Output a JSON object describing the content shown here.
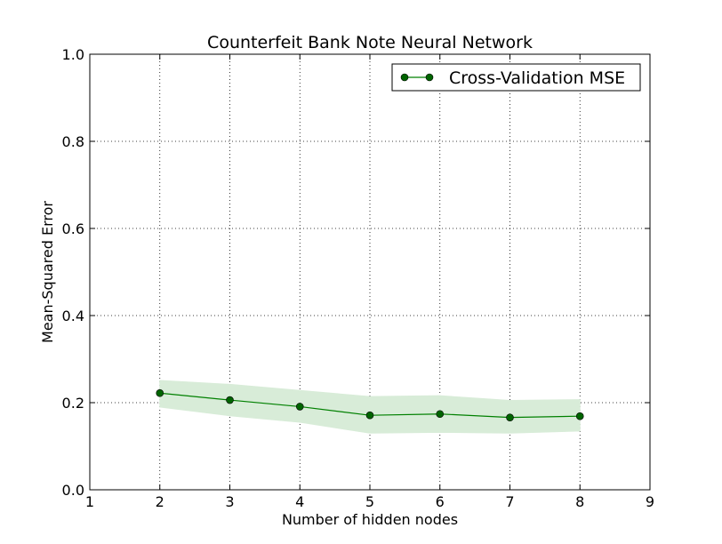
{
  "chart_data": {
    "type": "line",
    "title": "Counterfeit Bank Note Neural Network",
    "xlabel": "Number of hidden nodes",
    "ylabel": "Mean-Squared Error",
    "xlim": [
      1,
      9
    ],
    "ylim": [
      0.0,
      1.0
    ],
    "x_ticks": [
      "1",
      "2",
      "3",
      "4",
      "5",
      "6",
      "7",
      "8",
      "9"
    ],
    "y_ticks": [
      "0.0",
      "0.2",
      "0.4",
      "0.6",
      "0.8",
      "1.0"
    ],
    "grid": true,
    "legend_position": "top-right",
    "x": [
      2,
      3,
      4,
      5,
      6,
      7,
      8
    ],
    "series": [
      {
        "name": "Cross-Validation MSE",
        "values": [
          0.222,
          0.206,
          0.191,
          0.171,
          0.174,
          0.166,
          0.169
        ],
        "band_upper": [
          0.251,
          0.242,
          0.228,
          0.214,
          0.216,
          0.205,
          0.207
        ],
        "band_lower": [
          0.19,
          0.17,
          0.155,
          0.13,
          0.132,
          0.13,
          0.135
        ],
        "color": "#008000",
        "marker_color": "#006400",
        "band_color": "#d8ecd8"
      }
    ]
  }
}
